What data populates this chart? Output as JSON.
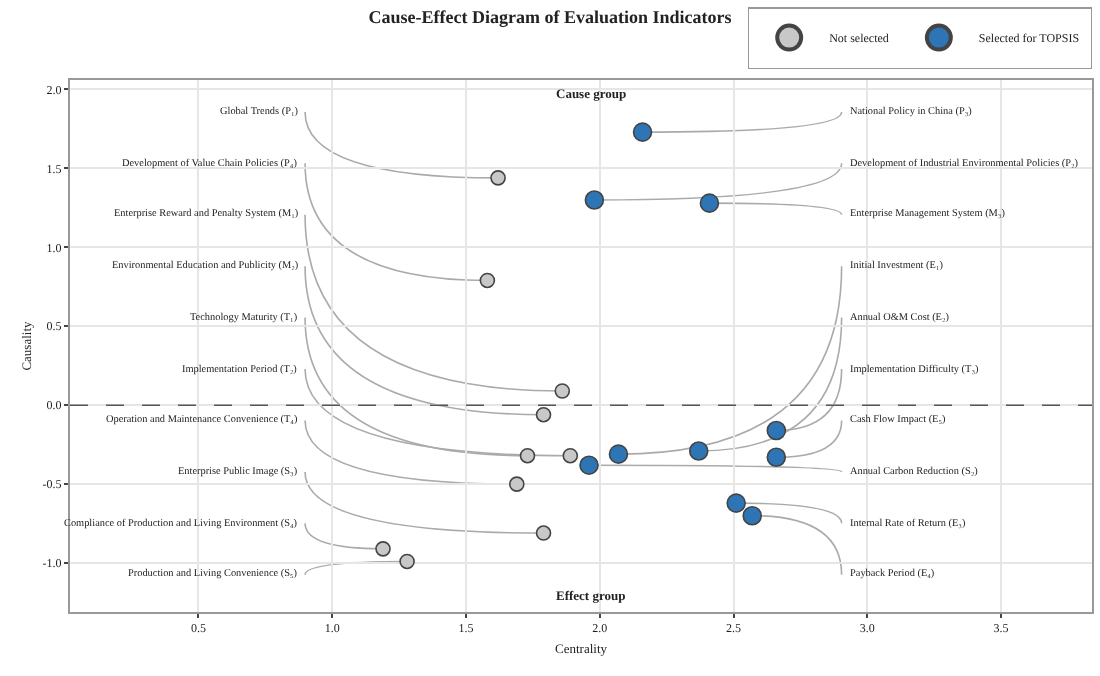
{
  "chart_data": {
    "type": "scatter",
    "title": "Cause-Effect Diagram of Evaluation Indicators",
    "xlabel": "Centrality",
    "ylabel": "Causality",
    "series": [
      {
        "name": "Not selected",
        "color": "#c8c8c8",
        "x": [
          1.62,
          1.58,
          1.86,
          1.79,
          1.73,
          1.89,
          1.69,
          1.79,
          1.19,
          1.28
        ],
        "values": [
          1.44,
          0.79,
          0.09,
          -0.06,
          -0.32,
          -0.32,
          -0.5,
          -0.81,
          -0.91,
          -0.99
        ]
      },
      {
        "name": "Selected for TOPSIS",
        "color": "#2e75b6",
        "x": [
          2.16,
          1.98,
          2.41,
          2.07,
          2.37,
          2.66,
          2.66,
          1.96,
          2.51,
          2.57
        ],
        "values": [
          1.73,
          1.3,
          1.28,
          -0.31,
          -0.29,
          -0.16,
          -0.33,
          -0.38,
          -0.62,
          -0.7
        ]
      }
    ],
    "marker": "circle",
    "legend": "top right",
    "grid": true,
    "xlim": [
      0.02,
      3.84
    ],
    "ylim": [
      -1.31,
      2.06
    ],
    "xticks": [
      {
        "value": 0.5,
        "label": "0.5"
      },
      {
        "value": 1,
        "label": "1.0"
      },
      {
        "value": 1.5,
        "label": "1.5"
      },
      {
        "value": 2,
        "label": "2.0"
      },
      {
        "value": 2.5,
        "label": "2.5"
      },
      {
        "value": 3,
        "label": "3.0"
      },
      {
        "value": 3.5,
        "label": "3.5"
      }
    ],
    "yticks": [
      {
        "value": -1,
        "label": "-1.0"
      },
      {
        "value": -0.5,
        "label": "-0.5"
      },
      {
        "value": 0,
        "label": "0.0"
      },
      {
        "value": 0.5,
        "label": "0.5"
      },
      {
        "value": 1,
        "label": "1.0"
      },
      {
        "value": 1.5,
        "label": "1.5"
      },
      {
        "value": 2,
        "label": "2.0"
      }
    ],
    "ref_lines": [
      {
        "axis": "y",
        "value": 0,
        "color": "#555555",
        "line_style": "dashed"
      }
    ],
    "annotations": [
      "Cause group",
      "Effect group",
      {
        "text": "Global Trends (P₁)",
        "x": 1.62,
        "y": 1.44
      },
      {
        "text": "Development of Value Chain Policies (P₄)",
        "x": 1.58,
        "y": 0.79
      },
      {
        "text": "Enterprise Reward and Penalty System (M₁)",
        "x": 1.86,
        "y": 0.09
      },
      {
        "text": "Environmental Education and Publicity (M₂)",
        "x": 1.79,
        "y": -0.06
      },
      {
        "text": "Technology Maturity (T₁)",
        "x": 1.73,
        "y": -0.32
      },
      {
        "text": "Implementation Period (T₂)",
        "x": 1.89,
        "y": -0.32
      },
      {
        "text": "Operation and Maintenance Convenience (T₄)",
        "x": 1.69,
        "y": -0.5
      },
      {
        "text": "Enterprise Public Image (S₃)",
        "x": 1.79,
        "y": -0.81
      },
      {
        "text": "Compliance of Production and Living Environment (S₄)",
        "x": 1.19,
        "y": -0.91
      },
      {
        "text": "Production and Living Convenience (S₅)",
        "x": 1.28,
        "y": -0.99
      },
      {
        "text": "National Policy in China (P₃)",
        "x": 2.16,
        "y": 1.73
      },
      {
        "text": "Development of Industrial Environmental Policies (P₂)",
        "x": 1.98,
        "y": 1.3
      },
      {
        "text": "Enterprise Management System (M₃)",
        "x": 2.41,
        "y": 1.28
      },
      {
        "text": "Initial Investment (E₁)",
        "x": 2.07,
        "y": -0.31
      },
      {
        "text": "Annual O&M Cost (E₂)",
        "x": 2.37,
        "y": -0.29
      },
      {
        "text": "Implementation Difficulty (T₃)",
        "x": 2.66,
        "y": -0.16
      },
      {
        "text": "Cash Flow Impact (E₅)",
        "x": 2.66,
        "y": -0.33
      },
      {
        "text": "Annual Carbon Reduction (S₂)",
        "x": 1.96,
        "y": -0.38
      },
      {
        "text": "Internal Rate of Return (E₃)",
        "x": 2.51,
        "y": -0.62
      },
      {
        "text": "Payback Period (E₄)",
        "x": 2.57,
        "y": -0.7
      }
    ]
  }
}
